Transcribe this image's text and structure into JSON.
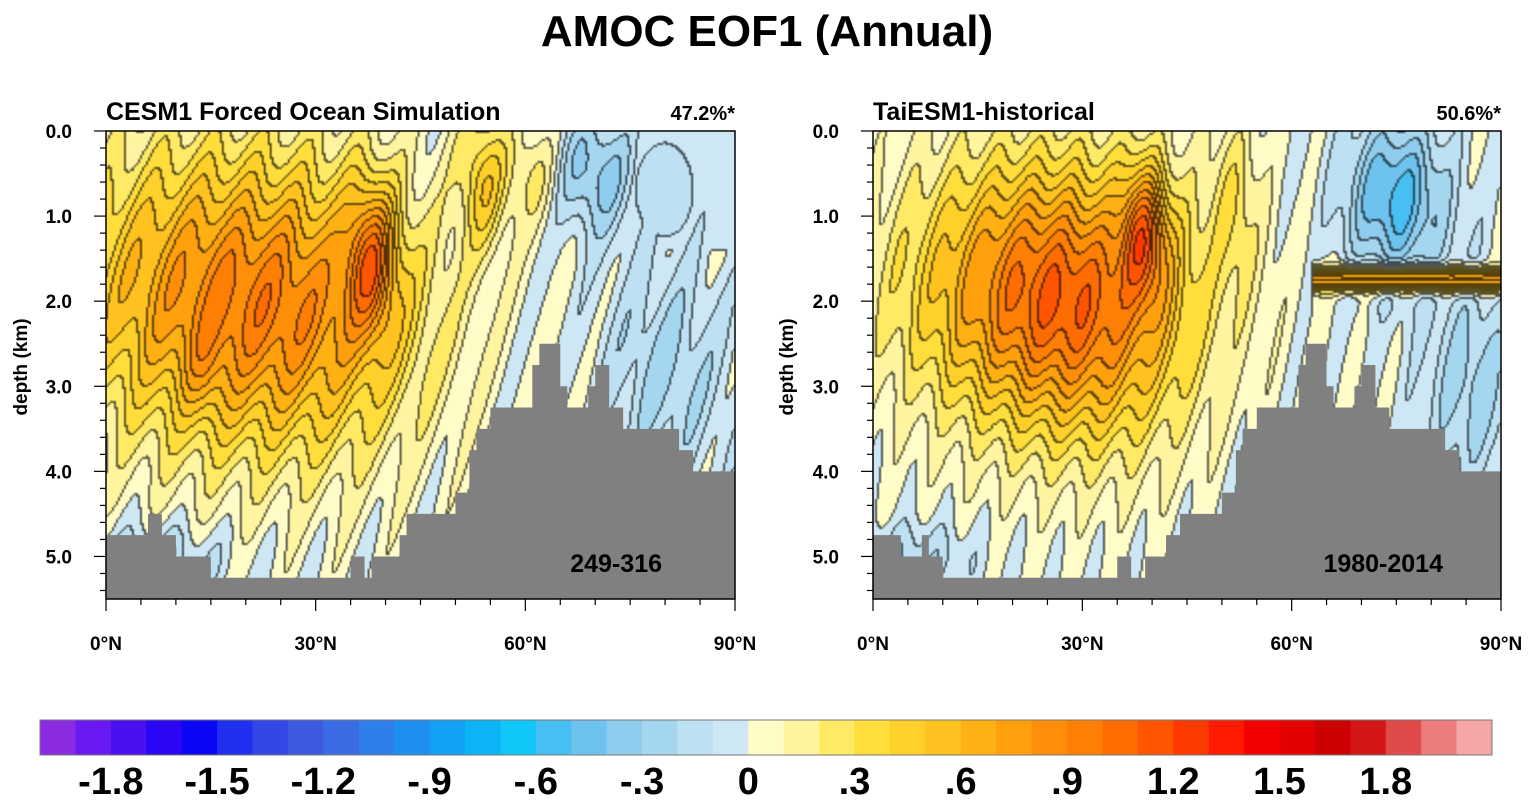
{
  "title": "AMOC EOF1 (Annual)",
  "chart_data": [
    {
      "type": "heatmap",
      "title": "CESM1 Forced Ocean Simulation",
      "explained_variance": "47.2%*",
      "period": "249-316",
      "ylabel": "depth (km)",
      "xlim": [
        0,
        90
      ],
      "ylim": [
        0,
        5.5
      ],
      "y_inverted": true,
      "x_ticks": [
        0,
        30,
        60,
        90
      ],
      "x_tick_labels": [
        "0°N",
        "30°N",
        "60°N",
        "90°N"
      ],
      "y_ticks": [
        0,
        1,
        2,
        3,
        4,
        5
      ],
      "y_tick_labels": [
        "0.0",
        "1.0",
        "2.0",
        "3.0",
        "4.0",
        "5.0"
      ],
      "field": {
        "main_cell": {
          "lat": 17,
          "depth": 1.8,
          "value": 0.75
        },
        "core": {
          "lat": 38,
          "depth": 1.5,
          "value": 1.25
        },
        "northern_cell": {
          "lat": 56,
          "depth": 0.6,
          "value": 0.45
        },
        "negative_patches": [
          {
            "lat": 70,
            "depth": 0.5,
            "value": -0.3
          },
          {
            "lat": 78,
            "depth": 3.0,
            "value": -0.15
          },
          {
            "lat": 8,
            "depth": 5.0,
            "value": -0.15
          }
        ]
      },
      "bathymetry": [
        [
          0,
          4.75
        ],
        [
          5,
          4.75
        ],
        [
          6,
          4.5
        ],
        [
          8,
          4.75
        ],
        [
          10,
          5.0
        ],
        [
          15,
          5.25
        ],
        [
          35,
          5.25
        ],
        [
          35,
          5.0
        ],
        [
          37,
          5.25
        ],
        [
          38,
          5.0
        ],
        [
          42,
          4.75
        ],
        [
          43,
          4.5
        ],
        [
          47,
          4.5
        ],
        [
          50,
          4.25
        ],
        [
          52,
          3.75
        ],
        [
          53,
          3.5
        ],
        [
          55,
          3.25
        ],
        [
          60,
          3.25
        ],
        [
          61,
          2.75
        ],
        [
          62,
          2.5
        ],
        [
          64,
          2.5
        ],
        [
          65,
          3.0
        ],
        [
          66,
          3.25
        ],
        [
          68,
          3.25
        ],
        [
          69,
          3.0
        ],
        [
          70,
          2.75
        ],
        [
          72,
          2.75
        ],
        [
          72,
          3.25
        ],
        [
          74,
          3.5
        ],
        [
          80,
          3.5
        ],
        [
          82,
          3.75
        ],
        [
          84,
          4.0
        ],
        [
          90,
          4.0
        ]
      ]
    },
    {
      "type": "heatmap",
      "title": "TaiESM1-historical",
      "explained_variance": "50.6%*",
      "period": "1980-2014",
      "ylabel": "depth (km)",
      "xlim": [
        0,
        90
      ],
      "ylim": [
        0,
        5.5
      ],
      "y_inverted": true,
      "x_ticks": [
        0,
        30,
        60,
        90
      ],
      "x_tick_labels": [
        "0°N",
        "30°N",
        "60°N",
        "90°N"
      ],
      "y_ticks": [
        0,
        1,
        2,
        3,
        4,
        5
      ],
      "y_tick_labels": [
        "0.0",
        "1.0",
        "2.0",
        "3.0",
        "4.0",
        "5.0"
      ],
      "field": {
        "main_cell": {
          "lat": 25,
          "depth": 1.8,
          "value": 0.95
        },
        "core": {
          "lat": 39,
          "depth": 1.2,
          "value": 1.35
        },
        "band": {
          "lat_range": [
            63,
            90
          ],
          "depth": 1.75,
          "value": 0.7
        },
        "negative_patches": [
          {
            "lat": 75,
            "depth": 0.8,
            "value": -0.5
          },
          {
            "lat": 85,
            "depth": 3.0,
            "value": -0.2
          },
          {
            "lat": 6,
            "depth": 5.0,
            "value": -0.15
          }
        ]
      },
      "bathymetry": [
        [
          0,
          4.75
        ],
        [
          3,
          4.75
        ],
        [
          4,
          5.0
        ],
        [
          6,
          5.0
        ],
        [
          7,
          4.75
        ],
        [
          8,
          5.0
        ],
        [
          10,
          5.25
        ],
        [
          35,
          5.25
        ],
        [
          35,
          5.0
        ],
        [
          37,
          5.25
        ],
        [
          39,
          5.0
        ],
        [
          42,
          4.75
        ],
        [
          44,
          4.5
        ],
        [
          47,
          4.5
        ],
        [
          50,
          4.25
        ],
        [
          52,
          3.75
        ],
        [
          53,
          3.5
        ],
        [
          55,
          3.25
        ],
        [
          60,
          3.25
        ],
        [
          61,
          2.75
        ],
        [
          62,
          2.5
        ],
        [
          64,
          2.5
        ],
        [
          65,
          3.0
        ],
        [
          66,
          3.25
        ],
        [
          68,
          3.25
        ],
        [
          69,
          3.0
        ],
        [
          70,
          2.75
        ],
        [
          72,
          2.75
        ],
        [
          72,
          3.25
        ],
        [
          74,
          3.5
        ],
        [
          80,
          3.5
        ],
        [
          82,
          3.75
        ],
        [
          84,
          4.0
        ],
        [
          90,
          4.0
        ]
      ]
    }
  ],
  "colorbar": {
    "levels_min": -2.0,
    "levels_step": 0.1,
    "labels": [
      "-1.8",
      "-1.5",
      "-1.2",
      "-.9",
      "-.6",
      "-.3",
      "0",
      ".3",
      ".6",
      ".9",
      "1.2",
      "1.5",
      "1.8"
    ],
    "label_values": [
      -1.8,
      -1.5,
      -1.2,
      -0.9,
      -0.6,
      -0.3,
      0,
      0.3,
      0.6,
      0.9,
      1.2,
      1.5,
      1.8
    ],
    "colors": [
      "#8a2be2",
      "#6a1af0",
      "#4b10f2",
      "#2a06f4",
      "#0b06f8",
      "#1f30ee",
      "#3346e6",
      "#3e5ae0",
      "#3a6ce6",
      "#2f7fea",
      "#1e8ff0",
      "#13a1f3",
      "#0ab4f6",
      "#11c6f9",
      "#48bff2",
      "#6ec3ee",
      "#8fcced",
      "#a5d6ef",
      "#bde1f2",
      "#cde8f4",
      "#fffcc8",
      "#fff4a0",
      "#ffea66",
      "#ffde3c",
      "#ffd02a",
      "#ffc21e",
      "#ffb012",
      "#ffa00c",
      "#ff8f08",
      "#ff7e04",
      "#ff6c02",
      "#ff5400",
      "#ff3a00",
      "#ff1a00",
      "#f40000",
      "#e20000",
      "#cc0000",
      "#d31616",
      "#e04a4a",
      "#ed7d7d",
      "#f5a6a6"
    ]
  },
  "land_color": "#808080"
}
